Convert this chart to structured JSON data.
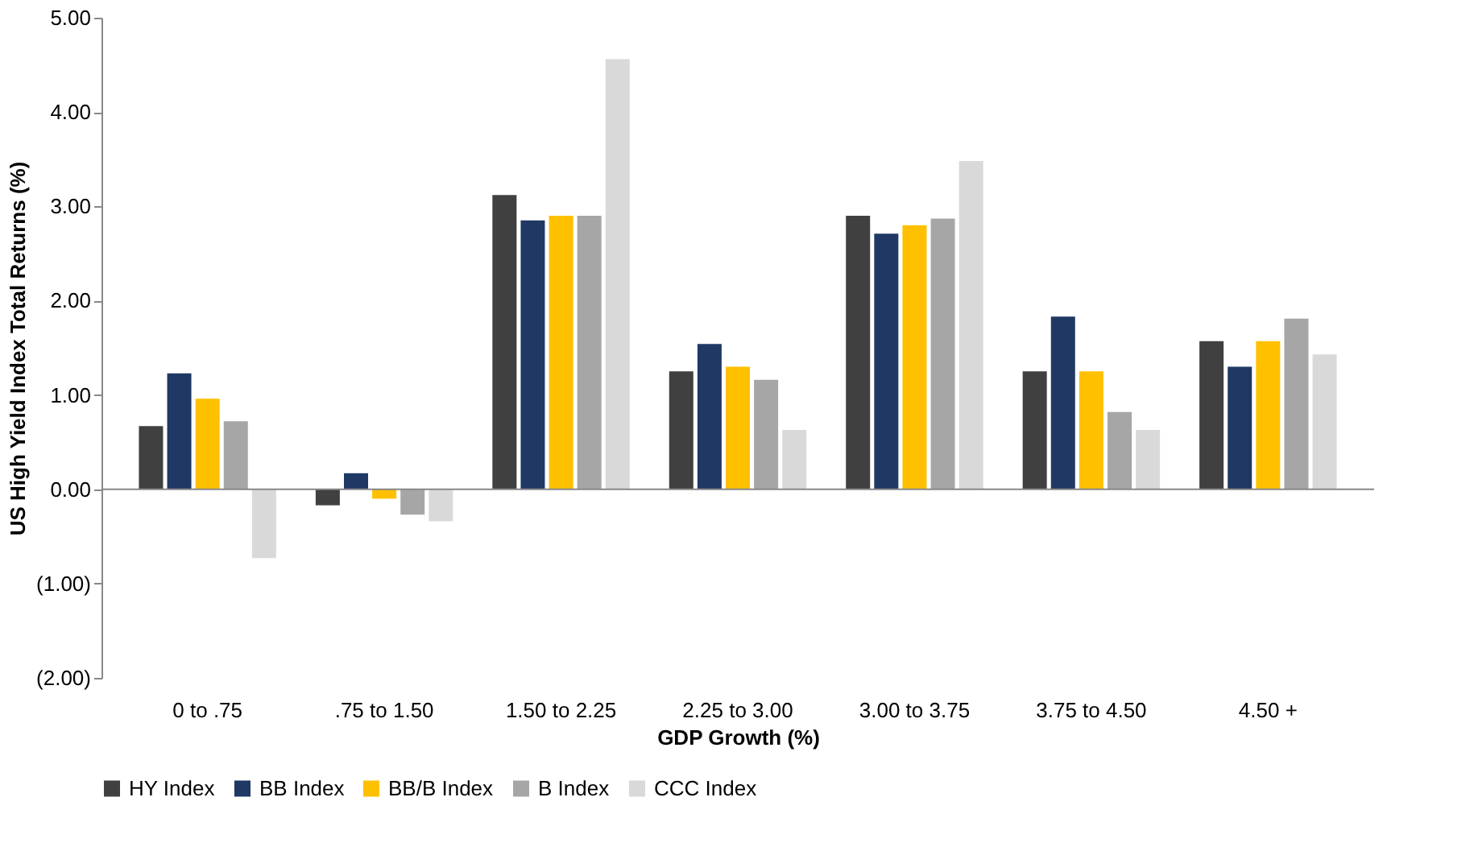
{
  "chart_data": {
    "type": "bar",
    "xlabel": "GDP Growth (%)",
    "ylabel": "US High Yield Index Total Returns (%)",
    "categories": [
      "0 to .75",
      ".75 to 1.50",
      "1.50 to 2.25",
      "2.25 to 3.00",
      "3.00 to 3.75",
      "3.75 to 4.50",
      "4.50 +"
    ],
    "series": [
      {
        "name": "HY Index",
        "color": "#404040",
        "values": [
          0.67,
          -0.17,
          3.12,
          1.25,
          2.9,
          1.25,
          1.57
        ]
      },
      {
        "name": "BB Index",
        "color": "#1f3864",
        "values": [
          1.23,
          0.17,
          2.85,
          1.54,
          2.71,
          1.83,
          1.3
        ]
      },
      {
        "name": "BB/B Index",
        "color": "#ffc000",
        "values": [
          0.96,
          -0.1,
          2.9,
          1.3,
          2.8,
          1.25,
          1.57
        ]
      },
      {
        "name": "B Index",
        "color": "#a6a6a6",
        "values": [
          0.72,
          -0.27,
          2.9,
          1.16,
          2.87,
          0.82,
          1.81
        ]
      },
      {
        "name": "CCC Index",
        "color": "#d9d9d9",
        "values": [
          -0.73,
          -0.34,
          4.56,
          0.63,
          3.48,
          0.63,
          1.43
        ]
      }
    ],
    "ylim": [
      -2,
      5
    ],
    "yticks": [
      {
        "value": -2,
        "label": "(2.00)"
      },
      {
        "value": -1,
        "label": "(1.00)"
      },
      {
        "value": 0,
        "label": "0.00"
      },
      {
        "value": 1,
        "label": "1.00"
      },
      {
        "value": 2,
        "label": "2.00"
      },
      {
        "value": 3,
        "label": "3.00"
      },
      {
        "value": 4,
        "label": "4.00"
      },
      {
        "value": 5,
        "label": "5.00"
      }
    ],
    "ref_lines": [
      {
        "axis": "y",
        "value": 0,
        "color": "#888888"
      }
    ],
    "grid": false,
    "legend": "bottom"
  }
}
